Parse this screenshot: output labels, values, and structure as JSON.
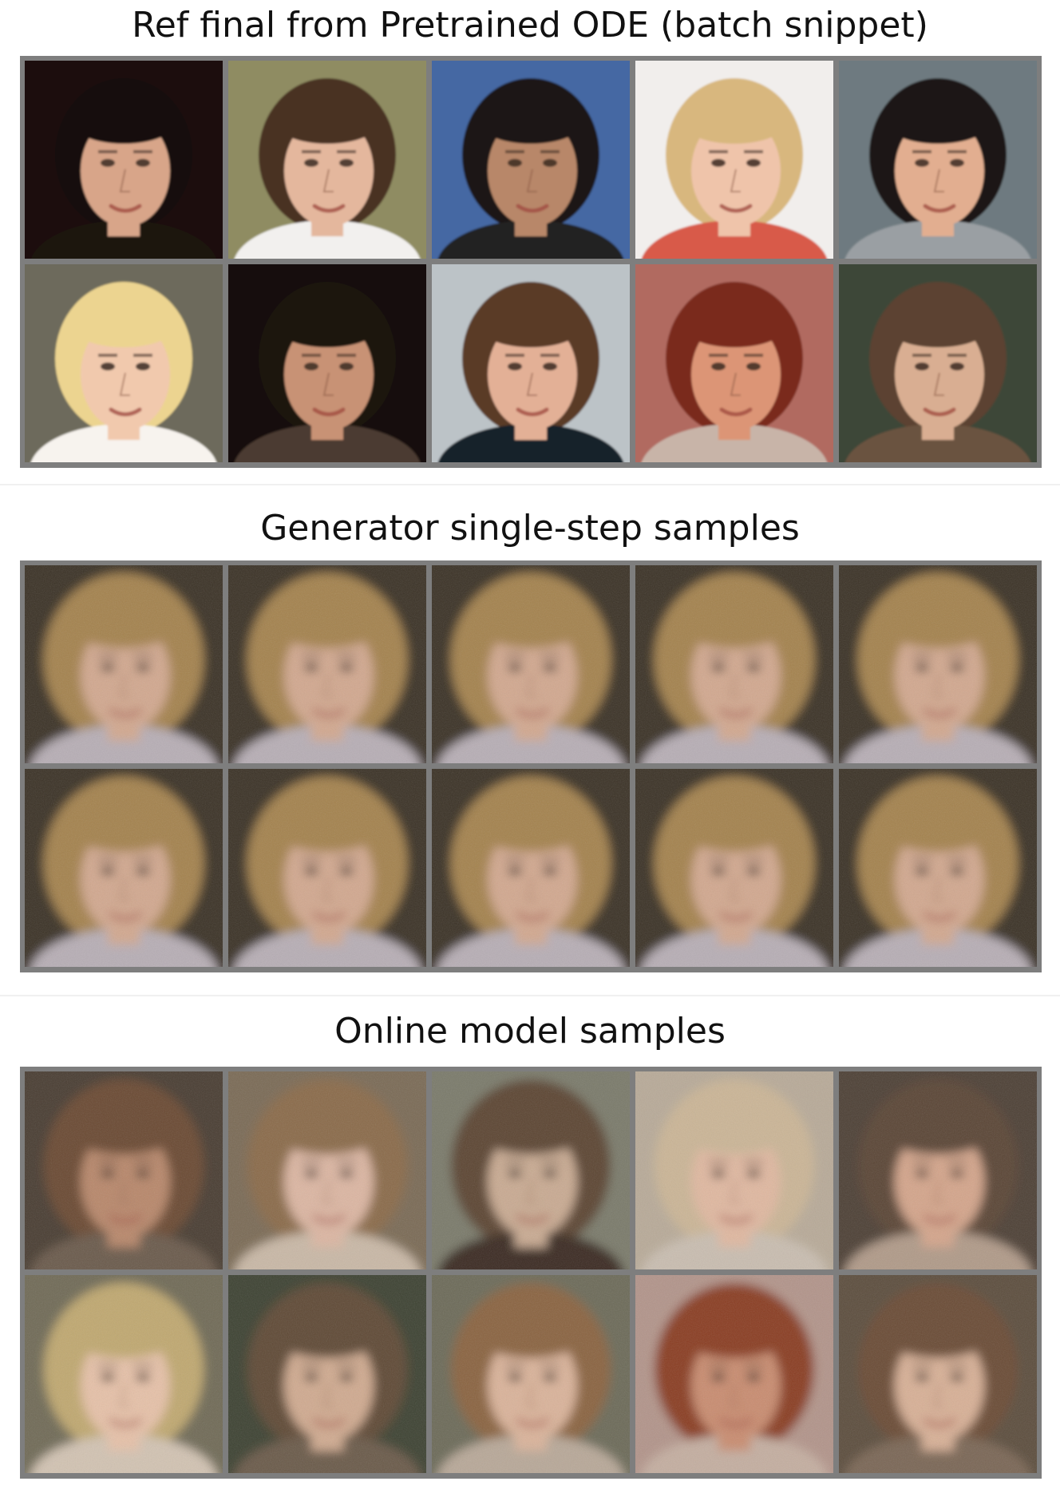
{
  "panels": [
    {
      "title": "Ref final from Pretrained ODE (batch snippet)",
      "kind": "ref",
      "images": [
        {
          "label": "face",
          "bg": "#1c110d",
          "hair": "#150f0c",
          "skin": "#d8a589",
          "shirt": "#1a120f"
        },
        {
          "label": "face",
          "bg": "#8f8c62",
          "hair": "#4a3124",
          "skin": "#e4b79d",
          "shirt": "#f2f0ee"
        },
        {
          "label": "face",
          "bg": "#4467a3",
          "hair": "#1e1813",
          "skin": "#b88769",
          "shirt": "#222"
        },
        {
          "label": "face",
          "bg": "#f1eeec",
          "hair": "#d8b77e",
          "skin": "#efc4aa",
          "shirt": "#d85a48"
        },
        {
          "label": "face",
          "bg": "#6e7a80",
          "hair": "#1c1714",
          "skin": "#e2ae90",
          "shirt": "#9a9fa3"
        },
        {
          "label": "face",
          "bg": "#6d6a5c",
          "hair": "#ecd490",
          "skin": "#f1c9ad",
          "shirt": "#f7f3ee"
        },
        {
          "label": "face",
          "bg": "#14100c",
          "hair": "#1b140f",
          "skin": "#c89274",
          "shirt": "#4b3b30"
        },
        {
          "label": "face",
          "bg": "#bcc3c7",
          "hair": "#5a3b27",
          "skin": "#e3b096",
          "shirt": "#15202a"
        },
        {
          "label": "face",
          "bg": "#b16a60",
          "hair": "#7a2a1a",
          "skin": "#dc9576",
          "shirt": "#c8b4a8"
        },
        {
          "label": "face",
          "bg": "#3c4638",
          "hair": "#5c4330",
          "skin": "#d9ae92",
          "shirt": "#6b533f"
        }
      ]
    },
    {
      "title": "Generator single-step samples",
      "kind": "gen",
      "images": [
        {
          "label": "face",
          "bg": "#3b3128",
          "hair": "#a4824d",
          "skin": "#d2a88f",
          "shirt": "#b7aeb5"
        },
        {
          "label": "face",
          "bg": "#3b3128",
          "hair": "#a4824d",
          "skin": "#d2a88f",
          "shirt": "#b7aeb5"
        },
        {
          "label": "face",
          "bg": "#3b3128",
          "hair": "#a4824d",
          "skin": "#d2a88f",
          "shirt": "#b7aeb5"
        },
        {
          "label": "face",
          "bg": "#3b3128",
          "hair": "#a4824d",
          "skin": "#d2a88f",
          "shirt": "#b7aeb5"
        },
        {
          "label": "face",
          "bg": "#3b3128",
          "hair": "#a4824d",
          "skin": "#d2a88f",
          "shirt": "#b7aeb5"
        },
        {
          "label": "face",
          "bg": "#3b3128",
          "hair": "#a4824d",
          "skin": "#d2a88f",
          "shirt": "#b7aeb5"
        },
        {
          "label": "face",
          "bg": "#3b3128",
          "hair": "#a4824d",
          "skin": "#d2a88f",
          "shirt": "#b7aeb5"
        },
        {
          "label": "face",
          "bg": "#3b3128",
          "hair": "#a4824d",
          "skin": "#d2a88f",
          "shirt": "#b7aeb5"
        },
        {
          "label": "face",
          "bg": "#3b3128",
          "hair": "#a4824d",
          "skin": "#d2a88f",
          "shirt": "#b7aeb5"
        },
        {
          "label": "face",
          "bg": "#3b3128",
          "hair": "#a4824d",
          "skin": "#d2a88f",
          "shirt": "#b7aeb5"
        }
      ]
    },
    {
      "title": "Online model samples",
      "kind": "online",
      "images": [
        {
          "label": "face",
          "bg": "#4a3c30",
          "hair": "#6a4a30",
          "skin": "#b8876b",
          "shirt": "#6a5a4c"
        },
        {
          "label": "face",
          "bg": "#7a6a55",
          "hair": "#8a6a48",
          "skin": "#dcb6a2",
          "shirt": "#c9b8a6"
        },
        {
          "label": "face",
          "bg": "#7a7a6a",
          "hair": "#5b4432",
          "skin": "#c9aa92",
          "shirt": "#3a2c22"
        },
        {
          "label": "face",
          "bg": "#b8aa98",
          "hair": "#cbb596",
          "skin": "#e0b8a0",
          "shirt": "#c9bdb0"
        },
        {
          "label": "face",
          "bg": "#4e4034",
          "hair": "#5a4534",
          "skin": "#d4a58b",
          "shirt": "#b09a88"
        },
        {
          "label": "face",
          "bg": "#6f6a56",
          "hair": "#c0a870",
          "skin": "#e6c1a8",
          "shirt": "#d2c3b2"
        },
        {
          "label": "face",
          "bg": "#3d4232",
          "hair": "#5e4a34",
          "skin": "#d0aa90",
          "shirt": "#6a5a4a"
        },
        {
          "label": "face",
          "bg": "#6c6a58",
          "hair": "#8a6440",
          "skin": "#dab39a",
          "shirt": "#b8a898"
        },
        {
          "label": "face",
          "bg": "#b2948a",
          "hair": "#8a3c22",
          "skin": "#c98c70",
          "shirt": "#c4aea0"
        },
        {
          "label": "face",
          "bg": "#5c4e3e",
          "hair": "#6a4c34",
          "skin": "#d8b096",
          "shirt": "#7a6654"
        }
      ]
    }
  ]
}
